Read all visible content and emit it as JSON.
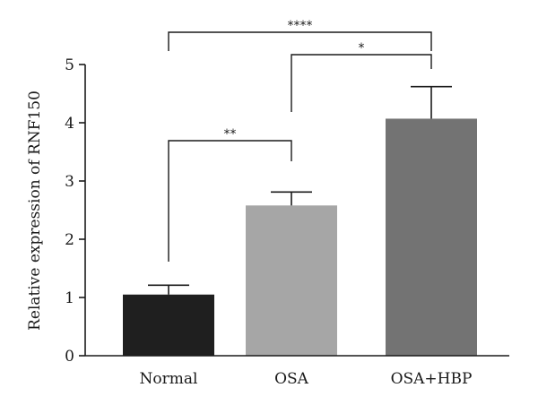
{
  "chart_data": {
    "type": "bar",
    "categories": [
      "Normal",
      "OSA",
      "OSA+HBP"
    ],
    "values": [
      1.05,
      2.58,
      4.07
    ],
    "errors": [
      0.16,
      0.23,
      0.55
    ],
    "colors": [
      "#1f1f1f",
      "#a6a6a6",
      "#737373"
    ],
    "ylabel": "Relative expression of RNF150",
    "ylim": [
      0,
      5
    ],
    "yticks": [
      "0",
      "1",
      "2",
      "3",
      "4",
      "5"
    ],
    "grid": false,
    "significance": [
      {
        "from": 0,
        "to": 1,
        "label": "**"
      },
      {
        "from": 1,
        "to": 2,
        "label": "*"
      },
      {
        "from": 0,
        "to": 2,
        "label": "****"
      }
    ]
  }
}
